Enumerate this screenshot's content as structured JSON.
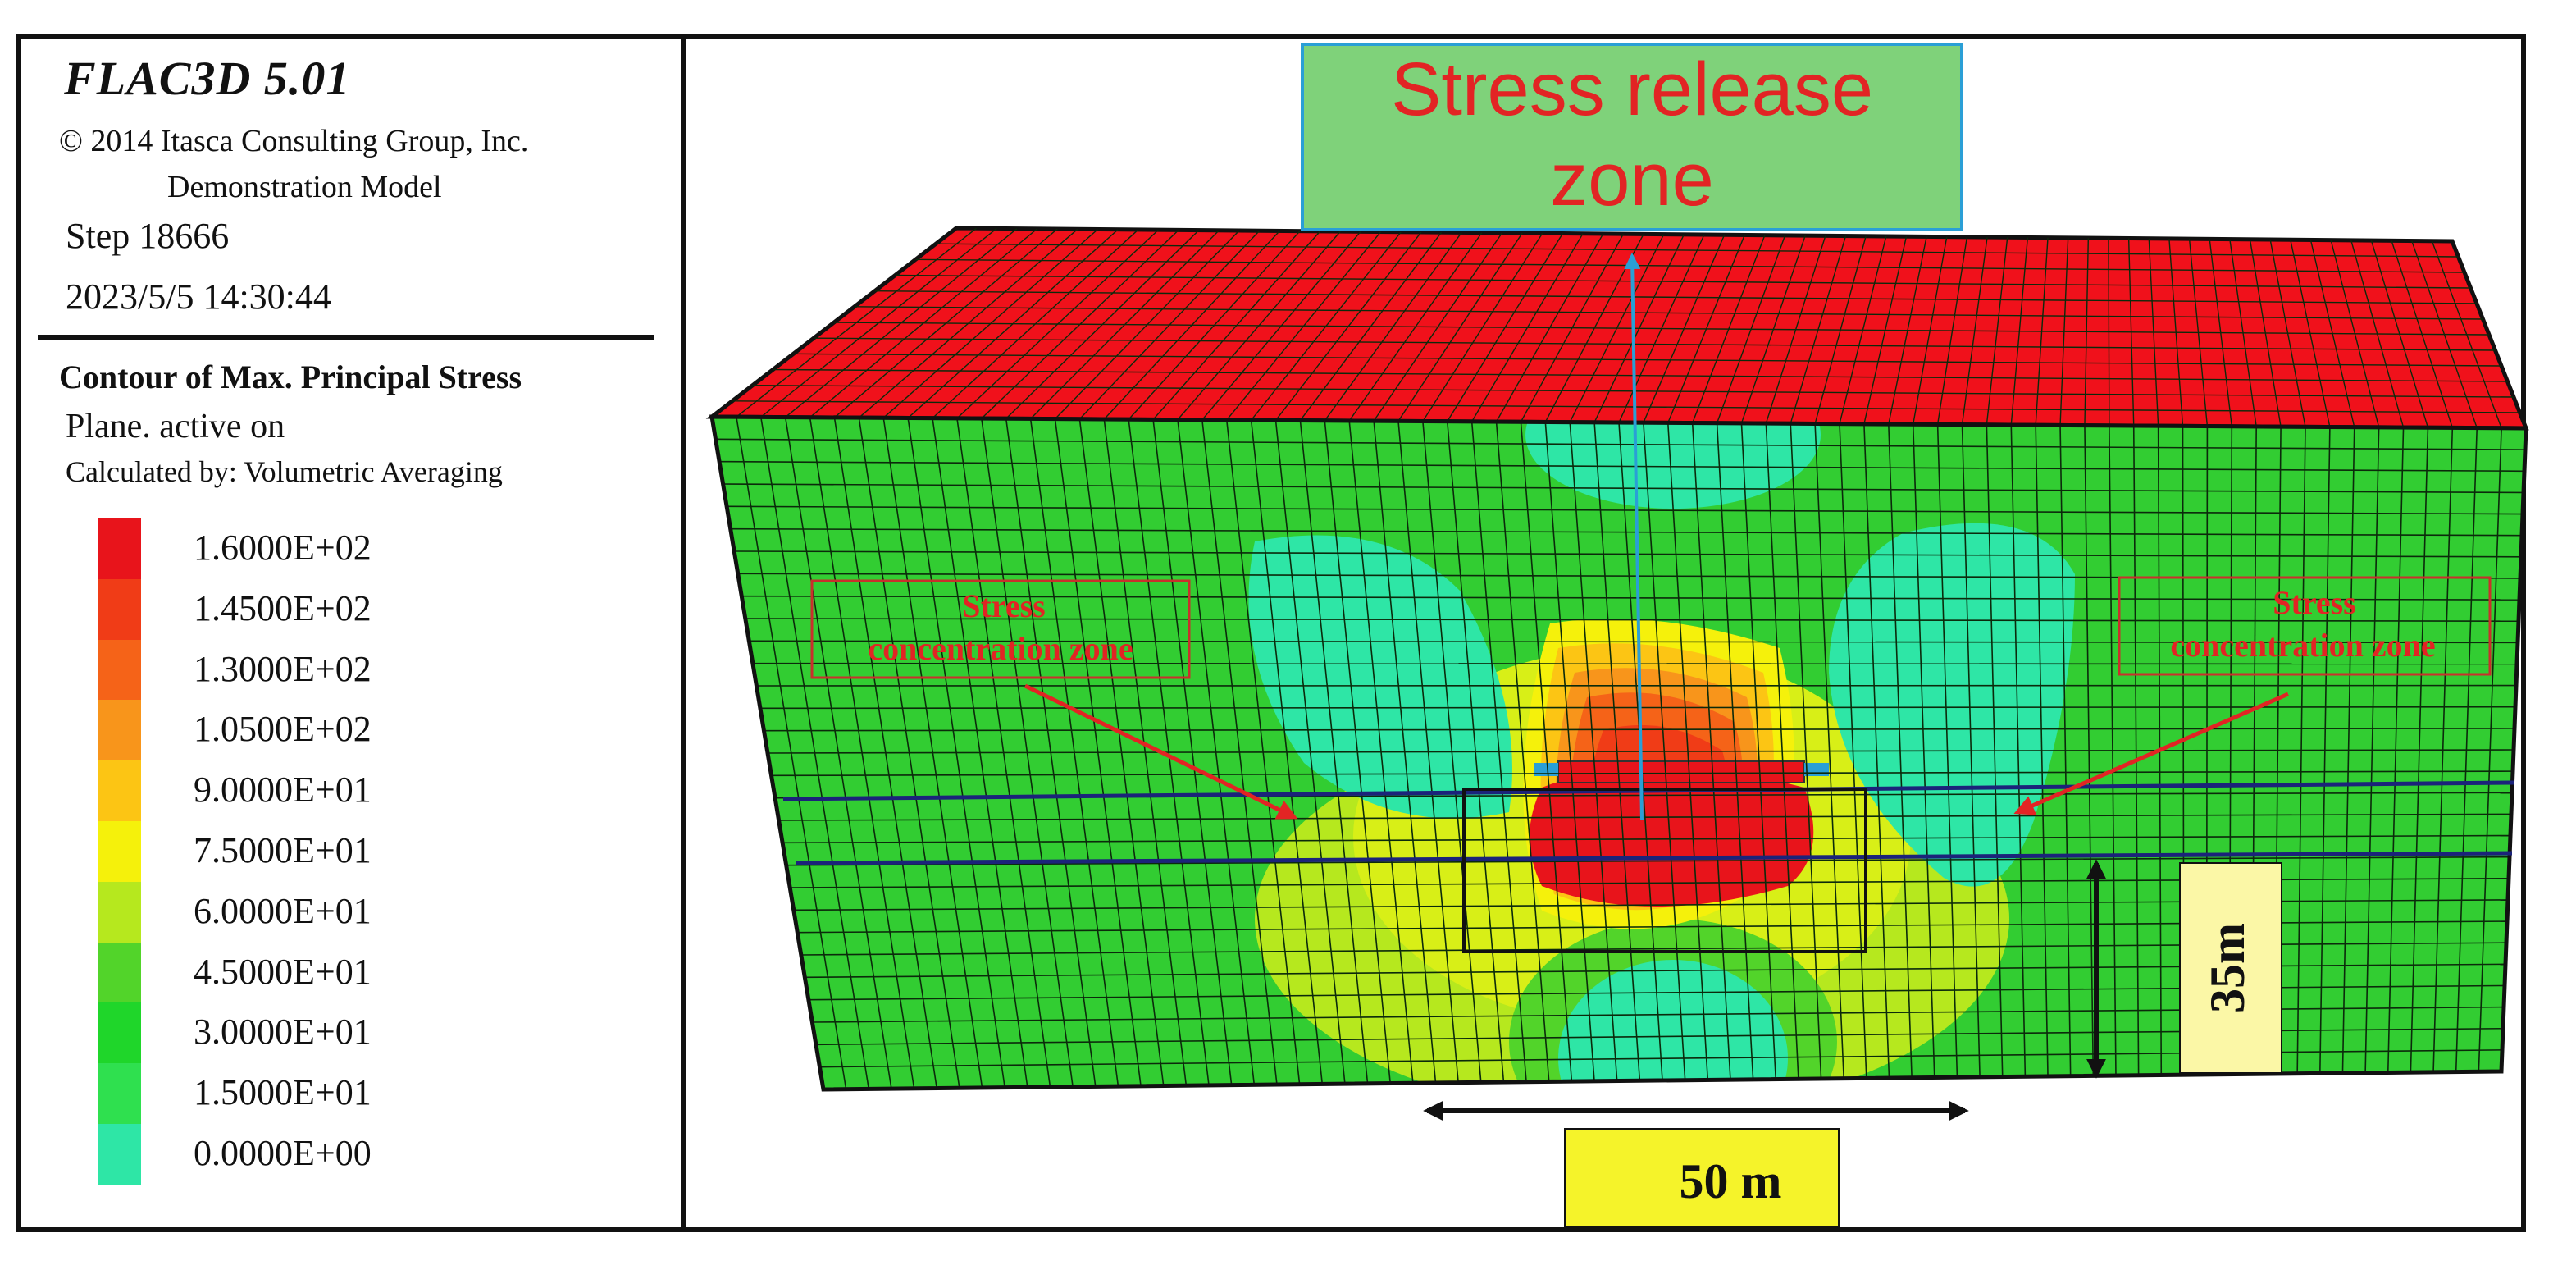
{
  "header": {
    "app_title": "FLAC3D  5.01",
    "copyright": "© 2014 Itasca Consulting Group, Inc.",
    "model_name": "Demonstration Model",
    "step": "Step  18666",
    "datetime": "2023/5/5 14:30:44"
  },
  "contour": {
    "title": "Contour of Max. Principal Stress",
    "plane": "Plane. active on",
    "calculated_by": "Calculated by: Volumetric Averaging"
  },
  "legend": [
    {
      "label": "1.6000E+02",
      "color": "#e8141b"
    },
    {
      "label": "1.4500E+02",
      "color": "#f03c17"
    },
    {
      "label": "1.3000E+02",
      "color": "#f56318"
    },
    {
      "label": "1.0500E+02",
      "color": "#f8951b"
    },
    {
      "label": "9.0000E+01",
      "color": "#fcc514"
    },
    {
      "label": "7.5000E+01",
      "color": "#f5f10b"
    },
    {
      "label": "6.0000E+01",
      "color": "#b6e81e"
    },
    {
      "label": "4.5000E+01",
      "color": "#52d42a"
    },
    {
      "label": "3.0000E+01",
      "color": "#1fd62a"
    },
    {
      "label": "1.5000E+01",
      "color": "#2fe04f"
    },
    {
      "label": "0.0000E+00",
      "color": "#2ee6a6"
    }
  ],
  "annotations": {
    "release_zone_line1": "Stress release",
    "release_zone_line2": "zone",
    "left_zone_line1": "Stress",
    "left_zone_line2": "concentration zone",
    "right_zone_line1": "Stress",
    "right_zone_line2": "concentration zone",
    "height_scale": "35m",
    "width_scale": "50 m"
  },
  "colors": {
    "top_surface": "#f0111b",
    "body_green": "#32cd32",
    "mesh_line": "#0b2a0b",
    "annotation_red": "#e22424",
    "release_box": "#7fd27a",
    "release_border": "#2a9fd6",
    "seam_line": "#1b237a",
    "scale_box": "#f5f32a"
  }
}
